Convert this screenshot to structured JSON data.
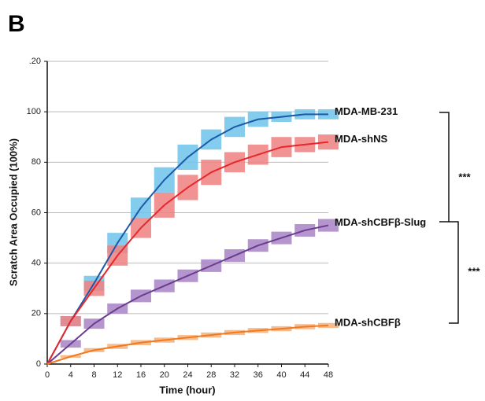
{
  "chart_data": {
    "type": "line",
    "panel_label": "B",
    "x_label": "Time (hour)",
    "y_label": "Scratch Area Occupied (100%)",
    "x": [
      0,
      4,
      8,
      12,
      16,
      20,
      24,
      28,
      32,
      36,
      40,
      44,
      48
    ],
    "xlim": [
      0,
      48
    ],
    "xticks": [
      0,
      4,
      8,
      12,
      16,
      20,
      24,
      28,
      32,
      36,
      40,
      44,
      48
    ],
    "ylim": [
      0,
      120
    ],
    "yticks": [
      0,
      20,
      40,
      60,
      80,
      100,
      {
        "value": 120,
        "label": ".20"
      }
    ],
    "grid": true,
    "series": [
      {
        "name": "MDA-MB-231",
        "color": "#1a5aa8",
        "band_color": "#6fc3ea",
        "values": [
          0,
          17,
          32,
          48,
          62,
          73,
          82,
          89,
          94,
          97,
          98,
          99,
          99
        ],
        "error": [
          0,
          2,
          3,
          4,
          4,
          5,
          5,
          4,
          4,
          3,
          2,
          2,
          2
        ]
      },
      {
        "name": "MDA-shNS",
        "color": "#e8262b",
        "band_color": "#f08080",
        "values": [
          0,
          17,
          30,
          43,
          54,
          63,
          70,
          76,
          80,
          83,
          86,
          87,
          88
        ],
        "error": [
          0,
          2,
          3,
          4,
          4,
          5,
          5,
          5,
          4,
          4,
          4,
          3,
          3
        ]
      },
      {
        "name": "MDA-shCBFβ-Slug",
        "color": "#6a3d91",
        "band_color": "#a882c4",
        "values": [
          0,
          8,
          16,
          22,
          27,
          31,
          35,
          39,
          43,
          47,
          50,
          53,
          55
        ],
        "error": [
          0,
          1.5,
          2,
          2,
          2.5,
          2.5,
          2.5,
          2.5,
          2.5,
          2.5,
          2.5,
          2.5,
          2.5
        ]
      },
      {
        "name": "MDA-shCBFβ",
        "color": "#f07a22",
        "band_color": "#f5b07a",
        "values": [
          0,
          3,
          5.5,
          7,
          8.5,
          9.5,
          10.5,
          11.5,
          12.5,
          13.3,
          14,
          14.8,
          15.3
        ],
        "error": [
          0,
          0.5,
          0.8,
          1,
          1,
          1,
          1,
          1,
          1,
          1,
          1,
          1,
          1
        ]
      }
    ],
    "annotations": [
      "***",
      "***"
    ]
  }
}
